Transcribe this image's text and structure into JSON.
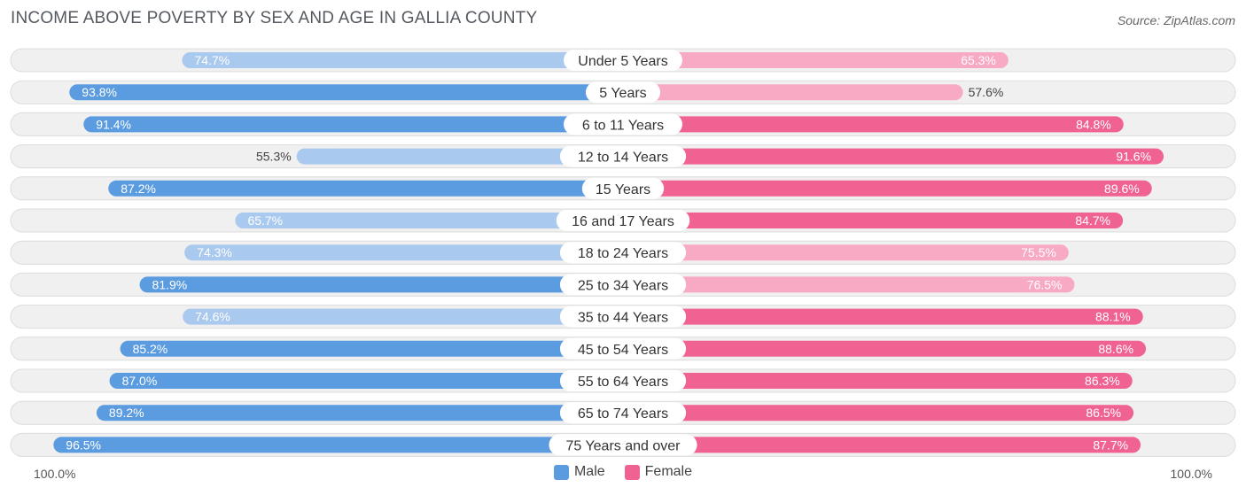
{
  "header": {
    "title": "INCOME ABOVE POVERTY BY SEX AND AGE IN GALLIA COUNTY",
    "source": "Source: ZipAtlas.com"
  },
  "axis": {
    "left_label": "100.0%",
    "right_label": "100.0%"
  },
  "legend": {
    "male": "Male",
    "female": "Female"
  },
  "colors": {
    "male_strong": "#5b9bdf",
    "male_light": "#a9c9ee",
    "female_strong": "#f06292",
    "female_light": "#f8a9c3",
    "row_bg": "#f0f0f0",
    "row_border": "#dcdcdc"
  },
  "chart_data": {
    "type": "bar",
    "orientation": "horizontal-diverging",
    "title": "INCOME ABOVE POVERTY BY SEX AND AGE IN GALLIA COUNTY",
    "xlim": [
      -100,
      100
    ],
    "categories": [
      "Under 5 Years",
      "5 Years",
      "6 to 11 Years",
      "12 to 14 Years",
      "15 Years",
      "16 and 17 Years",
      "18 to 24 Years",
      "25 to 34 Years",
      "35 to 44 Years",
      "45 to 54 Years",
      "55 to 64 Years",
      "65 to 74 Years",
      "75 Years and over"
    ],
    "series": [
      {
        "name": "Male",
        "values": [
          74.7,
          93.8,
          91.4,
          55.3,
          87.2,
          65.7,
          74.3,
          81.9,
          74.6,
          85.2,
          87.0,
          89.2,
          96.5
        ]
      },
      {
        "name": "Female",
        "values": [
          65.3,
          57.6,
          84.8,
          91.6,
          89.6,
          84.7,
          75.5,
          76.5,
          88.1,
          88.6,
          86.3,
          86.5,
          87.7
        ]
      }
    ],
    "value_labels": {
      "male": [
        "74.7%",
        "93.8%",
        "91.4%",
        "55.3%",
        "87.2%",
        "65.7%",
        "74.3%",
        "81.9%",
        "74.6%",
        "85.2%",
        "87.0%",
        "89.2%",
        "96.5%"
      ],
      "female": [
        "65.3%",
        "57.6%",
        "84.8%",
        "91.6%",
        "89.6%",
        "84.7%",
        "75.5%",
        "76.5%",
        "88.1%",
        "88.6%",
        "86.3%",
        "86.5%",
        "87.7%"
      ]
    }
  }
}
